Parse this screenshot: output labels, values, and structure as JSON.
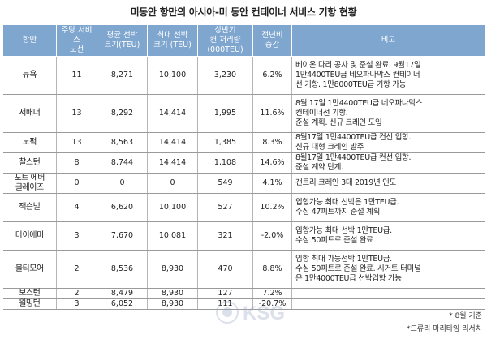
{
  "title": "미동안 항만의 아시아-미 동안 컨테이너 서비스 기항 현황",
  "headers": {
    "port": "항만",
    "services": [
      "주당 서비스",
      "노선"
    ],
    "avg": [
      "평균 선박",
      "크기(TEU)"
    ],
    "max": [
      "최대 선박",
      "크기 (TEU)"
    ],
    "volume": [
      "상반기",
      "컨 처리량",
      "(000TEU)"
    ],
    "change": [
      "전년비",
      "증감"
    ],
    "note": "비고"
  },
  "rows": [
    {
      "port": "뉴욕",
      "services": "11",
      "avg": "8,271",
      "max": "10,100",
      "volume": "3,230",
      "change": "6.2%",
      "note": [
        "베이온 다리 공사 및 준설 완료. 9월17일",
        "1만4400TEU급 네오파나막스 컨테이너",
        "선  기항. 1만8000TEU급 기항 가능"
      ]
    },
    {
      "port": "서배너",
      "services": "13",
      "avg": "8,292",
      "max": "14,414",
      "volume": "1,995",
      "change": "11.6%",
      "note": [
        "8월 17일 1만4400TEU급 네오파나막스",
        "컨테이너선 기항.",
        "준설 계획. 신규 크레인 도입"
      ]
    },
    {
      "port": "노퍽",
      "services": "13",
      "avg": "8,563",
      "max": "14,414",
      "volume": "1,385",
      "change": "8.3%",
      "note": [
        "8월17일 1만4400TEU급 컨선 입항.",
        "신규 대형 크레인 발주"
      ]
    },
    {
      "port": "찰스턴",
      "services": "8",
      "avg": "8,744",
      "max": "14,414",
      "volume": "1,108",
      "change": "14.6%",
      "note": [
        "8월17일 1만4400TEU급 컨선 입항.",
        "준설 계약 단계."
      ]
    },
    {
      "port": [
        "포트 에버",
        "글레이즈"
      ],
      "services": "0",
      "avg": "0",
      "max": "0",
      "volume": "549",
      "change": "4.1%",
      "note": [
        "갠트리 크레인 3대 2019년 인도"
      ]
    },
    {
      "port": "잭슨빌",
      "services": "4",
      "avg": "6,620",
      "max": "10,100",
      "volume": "527",
      "change": "10.2%",
      "note": [
        "입항가능 최대 선박은 1만TEU급.",
        "수심 47피트까지 준설 계획"
      ]
    },
    {
      "port": "마이애미",
      "services": "3",
      "avg": "7,670",
      "max": "10,081",
      "volume": "321",
      "change": "-2.0%",
      "note": [
        "입항가능 최대 선박 1만TEU급.",
        "수심 50피트로 준설 완료"
      ]
    },
    {
      "port": "볼티모어",
      "services": "2",
      "avg": "8,536",
      "max": "8,930",
      "volume": "470",
      "change": "8.8%",
      "note": [
        "입항 최대 가능선박 1만TEU급.",
        "수심 50피트로 준설 완료. 시거트 터미널",
        "은 1만4000TEU급 선박입항 가능"
      ]
    },
    {
      "port": "보스턴",
      "services": "2",
      "avg": "8,479",
      "max": "8,930",
      "volume": "127",
      "change": "7.2%",
      "note": []
    },
    {
      "port": "윌밍턴",
      "services": "3",
      "avg": "6,052",
      "max": "8,930",
      "volume": "111",
      "change": "-20.7%",
      "note": []
    }
  ],
  "footnotes": [
    "* 8월 기준",
    "*드류리 마리타임 리서치"
  ],
  "watermark": "KSG"
}
